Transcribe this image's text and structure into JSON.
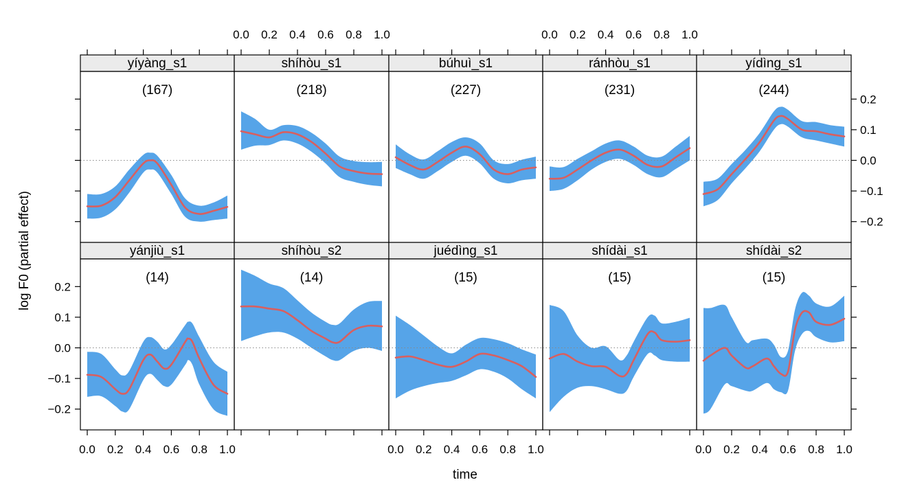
{
  "chart_data": {
    "type": "line",
    "xlabel": "time",
    "ylabel": "log F0 (partial effect)",
    "xlim": [
      0,
      1
    ],
    "ylim": [
      -0.25,
      0.25
    ],
    "x_ticks": [
      0.0,
      0.2,
      0.4,
      0.6,
      0.8,
      1.0
    ],
    "x_tick_labels": [
      "0.0",
      "0.2",
      "0.4",
      "0.6",
      "0.8",
      "1.0"
    ],
    "y_ticks": [
      -0.2,
      -0.1,
      0.0,
      0.1,
      0.2
    ],
    "y_tick_labels": [
      "−0.2",
      "−0.1",
      "0.0",
      "0.1",
      "0.2"
    ],
    "reference_line_y": 0.0,
    "colors": {
      "band": "#56a4e8",
      "line": "#d95f5f",
      "strip": "#ebebeb",
      "refline": "#888888"
    },
    "layout_rows": 2,
    "layout_cols": 5,
    "panels": [
      {
        "strip": "yíyàng_s1",
        "count": "(167)",
        "x": [
          0.0,
          0.1,
          0.2,
          0.3,
          0.4,
          0.45,
          0.5,
          0.6,
          0.7,
          0.8,
          0.9,
          1.0
        ],
        "y": [
          -0.15,
          -0.148,
          -0.12,
          -0.065,
          -0.01,
          0.0,
          -0.01,
          -0.08,
          -0.155,
          -0.175,
          -0.165,
          -0.152
        ],
        "lower": [
          -0.19,
          -0.187,
          -0.16,
          -0.105,
          -0.04,
          -0.03,
          -0.04,
          -0.11,
          -0.185,
          -0.2,
          -0.195,
          -0.19
        ],
        "upper": [
          -0.11,
          -0.11,
          -0.085,
          -0.03,
          0.018,
          0.025,
          0.015,
          -0.048,
          -0.125,
          -0.148,
          -0.138,
          -0.115
        ]
      },
      {
        "strip": "shíhòu_s1",
        "count": "(218)",
        "x": [
          0.0,
          0.1,
          0.2,
          0.3,
          0.4,
          0.5,
          0.6,
          0.7,
          0.8,
          0.9,
          1.0
        ],
        "y": [
          0.095,
          0.085,
          0.075,
          0.092,
          0.085,
          0.06,
          0.022,
          -0.02,
          -0.035,
          -0.043,
          -0.045
        ],
        "lower": [
          0.035,
          0.048,
          0.05,
          0.065,
          0.055,
          0.028,
          -0.01,
          -0.055,
          -0.07,
          -0.08,
          -0.085
        ],
        "upper": [
          0.16,
          0.135,
          0.1,
          0.115,
          0.112,
          0.09,
          0.055,
          0.012,
          -0.002,
          -0.006,
          -0.005
        ]
      },
      {
        "strip": "búhuì_s1",
        "count": "(227)",
        "x": [
          0.0,
          0.1,
          0.2,
          0.3,
          0.4,
          0.5,
          0.6,
          0.7,
          0.8,
          0.9,
          1.0
        ],
        "y": [
          0.01,
          -0.015,
          -0.03,
          -0.005,
          0.025,
          0.045,
          0.02,
          -0.03,
          -0.045,
          -0.03,
          -0.023
        ],
        "lower": [
          -0.025,
          -0.045,
          -0.06,
          -0.035,
          -0.005,
          0.015,
          -0.01,
          -0.06,
          -0.075,
          -0.065,
          -0.06
        ],
        "upper": [
          0.052,
          0.02,
          0.003,
          0.03,
          0.06,
          0.075,
          0.055,
          0.0,
          -0.012,
          0.002,
          0.012
        ]
      },
      {
        "strip": "ránhòu_s1",
        "count": "(231)",
        "x": [
          0.0,
          0.1,
          0.2,
          0.3,
          0.4,
          0.5,
          0.6,
          0.7,
          0.8,
          0.9,
          1.0
        ],
        "y": [
          -0.06,
          -0.057,
          -0.03,
          0.0,
          0.025,
          0.035,
          0.015,
          -0.015,
          -0.02,
          0.01,
          0.04
        ],
        "lower": [
          -0.1,
          -0.093,
          -0.065,
          -0.03,
          -0.005,
          0.005,
          -0.015,
          -0.045,
          -0.055,
          -0.028,
          0.0
        ],
        "upper": [
          -0.02,
          -0.022,
          0.005,
          0.03,
          0.055,
          0.065,
          0.045,
          0.015,
          0.012,
          0.045,
          0.08
        ]
      },
      {
        "strip": "yídìng_s1",
        "count": "(244)",
        "x": [
          0.0,
          0.1,
          0.2,
          0.3,
          0.4,
          0.5,
          0.55,
          0.6,
          0.7,
          0.8,
          0.9,
          1.0
        ],
        "y": [
          -0.11,
          -0.095,
          -0.045,
          0.005,
          0.06,
          0.13,
          0.145,
          0.135,
          0.1,
          0.095,
          0.085,
          0.078
        ],
        "lower": [
          -0.15,
          -0.13,
          -0.075,
          -0.025,
          0.03,
          0.1,
          0.118,
          0.11,
          0.075,
          0.065,
          0.055,
          0.045
        ],
        "upper": [
          -0.07,
          -0.06,
          -0.012,
          0.035,
          0.09,
          0.16,
          0.175,
          0.165,
          0.128,
          0.125,
          0.115,
          0.11
        ]
      },
      {
        "strip": "yánjiù_s1",
        "count": "(14)",
        "x": [
          0.0,
          0.1,
          0.2,
          0.25,
          0.3,
          0.4,
          0.45,
          0.5,
          0.55,
          0.6,
          0.7,
          0.72,
          0.75,
          0.8,
          0.9,
          1.0
        ],
        "y": [
          -0.088,
          -0.095,
          -0.135,
          -0.15,
          -0.135,
          -0.04,
          -0.022,
          -0.045,
          -0.068,
          -0.055,
          0.02,
          0.03,
          0.02,
          -0.035,
          -0.12,
          -0.15
        ],
        "lower": [
          -0.16,
          -0.158,
          -0.19,
          -0.208,
          -0.2,
          -0.105,
          -0.085,
          -0.105,
          -0.125,
          -0.12,
          -0.055,
          -0.04,
          -0.055,
          -0.12,
          -0.2,
          -0.222
        ],
        "upper": [
          -0.013,
          -0.02,
          -0.07,
          -0.09,
          -0.075,
          0.02,
          0.035,
          0.02,
          -0.005,
          0.01,
          0.075,
          0.085,
          0.08,
          0.035,
          -0.045,
          -0.078
        ]
      },
      {
        "strip": "shíhòu_s2",
        "count": "(14)",
        "x": [
          0.0,
          0.1,
          0.2,
          0.3,
          0.4,
          0.5,
          0.6,
          0.65,
          0.7,
          0.8,
          0.9,
          1.0
        ],
        "y": [
          0.135,
          0.135,
          0.128,
          0.12,
          0.09,
          0.055,
          0.03,
          0.018,
          0.02,
          0.058,
          0.072,
          0.07
        ],
        "lower": [
          0.022,
          0.038,
          0.05,
          0.05,
          0.03,
          0.0,
          -0.028,
          -0.04,
          -0.04,
          -0.01,
          0.0,
          -0.01
        ],
        "upper": [
          0.255,
          0.235,
          0.21,
          0.195,
          0.155,
          0.115,
          0.085,
          0.075,
          0.08,
          0.125,
          0.15,
          0.153
        ]
      },
      {
        "strip": "juédìng_s1",
        "count": "(15)",
        "x": [
          0.0,
          0.1,
          0.2,
          0.3,
          0.4,
          0.5,
          0.6,
          0.7,
          0.8,
          0.9,
          1.0
        ],
        "y": [
          -0.032,
          -0.028,
          -0.04,
          -0.055,
          -0.062,
          -0.045,
          -0.02,
          -0.025,
          -0.04,
          -0.06,
          -0.095
        ],
        "lower": [
          -0.165,
          -0.14,
          -0.125,
          -0.115,
          -0.108,
          -0.09,
          -0.07,
          -0.078,
          -0.1,
          -0.135,
          -0.165
        ],
        "upper": [
          0.105,
          0.075,
          0.04,
          0.005,
          -0.018,
          0.01,
          0.032,
          0.028,
          0.015,
          -0.005,
          -0.022
        ]
      },
      {
        "strip": "shídài_s1",
        "count": "(15)",
        "x": [
          0.0,
          0.1,
          0.2,
          0.3,
          0.4,
          0.5,
          0.55,
          0.6,
          0.7,
          0.75,
          0.8,
          0.9,
          1.0
        ],
        "y": [
          -0.035,
          -0.02,
          -0.045,
          -0.06,
          -0.062,
          -0.092,
          -0.085,
          -0.04,
          0.045,
          0.05,
          0.025,
          0.02,
          0.025
        ],
        "lower": [
          -0.21,
          -0.16,
          -0.13,
          -0.125,
          -0.135,
          -0.15,
          -0.14,
          -0.095,
          -0.02,
          -0.025,
          -0.04,
          -0.045,
          -0.045
        ],
        "upper": [
          0.14,
          0.12,
          0.04,
          0.0,
          0.005,
          -0.04,
          -0.025,
          0.02,
          0.1,
          0.105,
          0.08,
          0.085,
          0.098
        ]
      },
      {
        "strip": "shídài_s2",
        "count": "(15)",
        "x": [
          0.0,
          0.05,
          0.15,
          0.2,
          0.3,
          0.35,
          0.45,
          0.5,
          0.55,
          0.6,
          0.65,
          0.7,
          0.75,
          0.8,
          0.9,
          1.0
        ],
        "y": [
          -0.042,
          -0.025,
          0.0,
          -0.025,
          -0.065,
          -0.06,
          -0.035,
          -0.06,
          -0.085,
          -0.078,
          0.06,
          0.115,
          0.115,
          0.085,
          0.075,
          0.095
        ],
        "lower": [
          -0.215,
          -0.2,
          -0.12,
          -0.125,
          -0.14,
          -0.14,
          -0.115,
          -0.135,
          -0.145,
          -0.14,
          -0.01,
          0.045,
          0.055,
          0.035,
          0.018,
          0.022
        ],
        "upper": [
          0.13,
          0.13,
          0.14,
          0.1,
          0.02,
          0.025,
          0.03,
          0.01,
          -0.03,
          -0.01,
          0.125,
          0.18,
          0.17,
          0.145,
          0.135,
          0.17
        ]
      }
    ]
  }
}
